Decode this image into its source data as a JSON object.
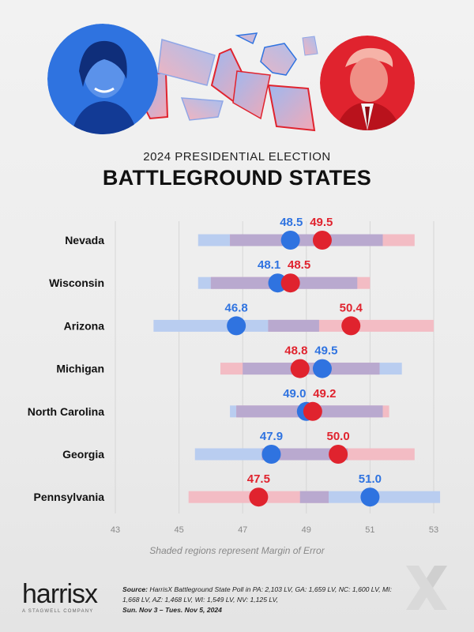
{
  "header": {
    "subtitle": "2024 PRESIDENTIAL ELECTION",
    "title": "BATTLEGROUND STATES"
  },
  "colors": {
    "harris": "#2f73e0",
    "trump": "#e0232e",
    "harris_band": "#b9cdf0",
    "trump_band": "#f3bcc4",
    "overlap_band": "#b9a9cf"
  },
  "chart_data": {
    "type": "dot-range",
    "title": "BATTLEGROUND STATES",
    "subtitle": "2024 PRESIDENTIAL ELECTION",
    "xlim": [
      43,
      53
    ],
    "xticks": [
      43,
      45,
      47,
      49,
      51,
      53
    ],
    "grid": true,
    "categories": [
      "Nevada",
      "Wisconsin",
      "Arizona",
      "Michigan",
      "North Carolina",
      "Georgia",
      "Pennsylvania"
    ],
    "series": [
      {
        "candidate": "harris",
        "values": [
          48.5,
          48.1,
          46.8,
          49.5,
          49.0,
          47.9,
          51.0
        ],
        "moe": [
          2.9,
          2.5,
          2.6,
          2.5,
          2.4,
          2.4,
          2.2
        ]
      },
      {
        "candidate": "trump",
        "values": [
          49.5,
          48.5,
          50.4,
          48.8,
          49.2,
          50.0,
          47.5
        ],
        "moe": [
          2.9,
          2.5,
          2.6,
          2.5,
          2.4,
          2.4,
          2.2
        ]
      }
    ],
    "caption": "Shaded regions represent Margin of Error"
  },
  "brand": {
    "name": "harrisx",
    "tagline": "A STAGWELL COMPANY"
  },
  "source": {
    "label": "Source:",
    "text": "HarrisX Battleground State Poll in PA: 2,103 LV, GA: 1,659 LV, NC: 1,600 LV, MI: 1,668 LV, AZ: 1,468 LV, WI: 1,549 LV, NV: 1,125 LV,",
    "dates": "Sun. Nov 3 – Tues. Nov 5, 2024"
  }
}
